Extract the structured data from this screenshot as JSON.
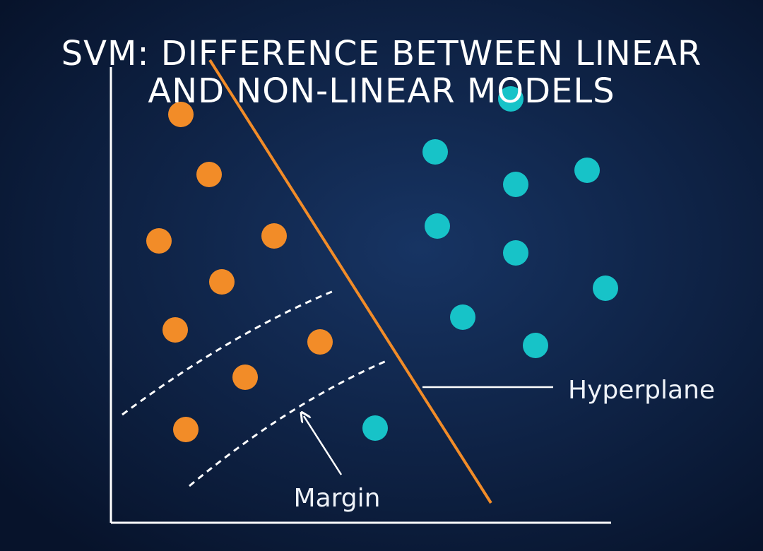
{
  "title": [
    "SVM: DIFFERENCE BETWEEN LINEAR",
    "AND NON-LINEAR MODELS"
  ],
  "labels": {
    "hyperplane": "Hyperplane",
    "margin": "Margin"
  }
}
